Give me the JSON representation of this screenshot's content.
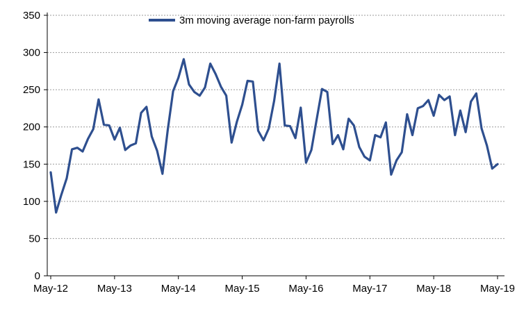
{
  "chart_data": {
    "type": "line",
    "title": "",
    "xlabel": "",
    "ylabel": "",
    "ylim": [
      0,
      350
    ],
    "y_ticks": [
      0,
      50,
      100,
      150,
      200,
      250,
      300,
      350
    ],
    "x_tick_labels": [
      "May-12",
      "May-13",
      "May-14",
      "May-15",
      "May-16",
      "May-17",
      "May-18",
      "May-19"
    ],
    "x_tick_months": [
      0,
      12,
      24,
      36,
      48,
      60,
      72,
      84
    ],
    "grid": "horizontal",
    "legend_position": "top",
    "series": [
      {
        "name": "3m moving average non-farm payrolls",
        "color": "#2E4F8F",
        "x_start": "May-12",
        "frequency": "monthly",
        "values": [
          139,
          85,
          109,
          131,
          170,
          172,
          167,
          184,
          197,
          237,
          203,
          202,
          183,
          199,
          169,
          175,
          178,
          219,
          227,
          187,
          168,
          137,
          196,
          248,
          266,
          291,
          257,
          247,
          242,
          253,
          285,
          271,
          254,
          242,
          179,
          207,
          230,
          262,
          261,
          195,
          182,
          198,
          235,
          285,
          202,
          201,
          185,
          226,
          152,
          169,
          210,
          251,
          247,
          177,
          189,
          170,
          211,
          202,
          173,
          160,
          155,
          189,
          186,
          206,
          136,
          155,
          166,
          217,
          189,
          225,
          228,
          236,
          215,
          243,
          236,
          241,
          189,
          222,
          193,
          234,
          245,
          198,
          175,
          144,
          150
        ]
      }
    ]
  }
}
